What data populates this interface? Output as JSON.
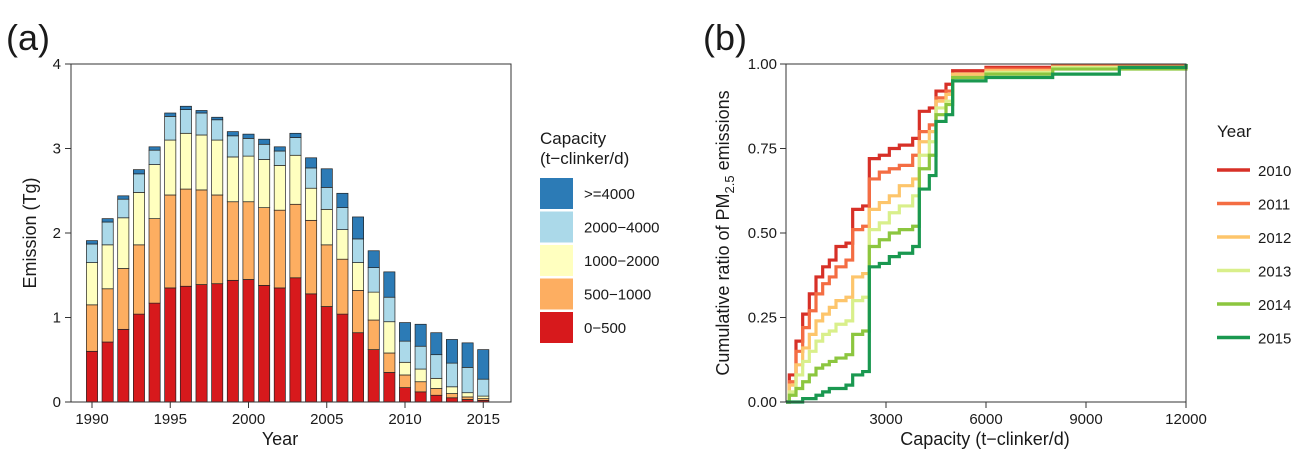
{
  "chart_data": [
    {
      "panel_label": "(a)",
      "type": "bar",
      "stacked": true,
      "xlabel": "Year",
      "ylabel": "Emission (Tg)",
      "ylim": [
        0,
        4
      ],
      "yticks": [
        0,
        1,
        2,
        3,
        4
      ],
      "xtick_labels": [
        "1990",
        "1995",
        "2000",
        "2005",
        "2010",
        "2015"
      ],
      "categories": [
        1990,
        1991,
        1992,
        1993,
        1994,
        1995,
        1996,
        1997,
        1998,
        1999,
        2000,
        2001,
        2002,
        2003,
        2004,
        2005,
        2006,
        2007,
        2008,
        2009,
        2010,
        2011,
        2012,
        2013,
        2014,
        2015
      ],
      "legend_title": [
        "Capacity",
        "(t−clinker/d)"
      ],
      "legend_position": "right",
      "series": [
        {
          "name": "0−500",
          "color": "#d7191c",
          "values": [
            0.6,
            0.71,
            0.86,
            1.04,
            1.17,
            1.35,
            1.37,
            1.39,
            1.4,
            1.44,
            1.45,
            1.38,
            1.35,
            1.47,
            1.28,
            1.13,
            1.04,
            0.82,
            0.62,
            0.35,
            0.17,
            0.12,
            0.08,
            0.05,
            0.03,
            0.02
          ]
        },
        {
          "name": "500−1000",
          "color": "#fdae61",
          "values": [
            0.55,
            0.63,
            0.72,
            0.82,
            1.0,
            1.1,
            1.15,
            1.12,
            1.05,
            0.93,
            0.92,
            0.92,
            0.92,
            0.87,
            0.87,
            0.73,
            0.65,
            0.5,
            0.35,
            0.23,
            0.15,
            0.12,
            0.08,
            0.05,
            0.03,
            0.02
          ]
        },
        {
          "name": "1000−2000",
          "color": "#ffffbf",
          "values": [
            0.5,
            0.52,
            0.6,
            0.62,
            0.64,
            0.65,
            0.66,
            0.65,
            0.65,
            0.53,
            0.54,
            0.57,
            0.53,
            0.58,
            0.38,
            0.42,
            0.35,
            0.33,
            0.33,
            0.37,
            0.15,
            0.15,
            0.12,
            0.08,
            0.05,
            0.03
          ]
        },
        {
          "name": "2000−4000",
          "color": "#abd9e9",
          "values": [
            0.22,
            0.27,
            0.22,
            0.22,
            0.17,
            0.28,
            0.28,
            0.26,
            0.24,
            0.25,
            0.21,
            0.18,
            0.17,
            0.21,
            0.24,
            0.26,
            0.26,
            0.28,
            0.29,
            0.29,
            0.25,
            0.27,
            0.28,
            0.28,
            0.3,
            0.2
          ]
        },
        {
          "name": ">=4000",
          "color": "#2c7bb6",
          "values": [
            0.04,
            0.04,
            0.04,
            0.05,
            0.04,
            0.04,
            0.04,
            0.03,
            0.03,
            0.05,
            0.05,
            0.06,
            0.05,
            0.05,
            0.12,
            0.22,
            0.17,
            0.26,
            0.2,
            0.3,
            0.22,
            0.26,
            0.26,
            0.28,
            0.29,
            0.35
          ]
        }
      ]
    },
    {
      "panel_label": "(b)",
      "type": "line",
      "step": true,
      "xlabel": "Capacity (t−clinker/d)",
      "ylabel_prefix": "Cumulative ratio of PM",
      "ylabel_sub": "2.5",
      "ylabel_suffix": " emissions",
      "xlim": [
        0,
        12000
      ],
      "ylim": [
        0,
        1
      ],
      "xtick_values": [
        3000,
        6000,
        9000,
        12000
      ],
      "xtick_labels": [
        "3000",
        "6000",
        "9000",
        "12000"
      ],
      "ytick_values": [
        0,
        0.25,
        0.5,
        0.75,
        1
      ],
      "ytick_labels": [
        "0.00",
        "0.25",
        "0.50",
        "0.75",
        "1.00"
      ],
      "legend_title": "Year",
      "legend_position": "right",
      "series": [
        {
          "name": "2010",
          "color": "#d73027",
          "points": [
            [
              0,
              0
            ],
            [
              100,
              0.08
            ],
            [
              300,
              0.18
            ],
            [
              500,
              0.26
            ],
            [
              700,
              0.32
            ],
            [
              900,
              0.37
            ],
            [
              1100,
              0.4
            ],
            [
              1300,
              0.42
            ],
            [
              1500,
              0.46
            ],
            [
              1800,
              0.47
            ],
            [
              2000,
              0.57
            ],
            [
              2300,
              0.58
            ],
            [
              2500,
              0.72
            ],
            [
              2800,
              0.73
            ],
            [
              3100,
              0.75
            ],
            [
              3400,
              0.76
            ],
            [
              3800,
              0.78
            ],
            [
              4000,
              0.86
            ],
            [
              4300,
              0.87
            ],
            [
              4500,
              0.92
            ],
            [
              4800,
              0.94
            ],
            [
              5000,
              0.98
            ],
            [
              6000,
              0.99
            ],
            [
              8000,
              0.995
            ],
            [
              12000,
              1.0
            ]
          ]
        },
        {
          "name": "2011",
          "color": "#f46d43",
          "points": [
            [
              0,
              0
            ],
            [
              100,
              0.06
            ],
            [
              300,
              0.15
            ],
            [
              500,
              0.22
            ],
            [
              700,
              0.27
            ],
            [
              900,
              0.32
            ],
            [
              1100,
              0.35
            ],
            [
              1300,
              0.37
            ],
            [
              1500,
              0.4
            ],
            [
              1800,
              0.42
            ],
            [
              2000,
              0.51
            ],
            [
              2300,
              0.52
            ],
            [
              2500,
              0.66
            ],
            [
              2800,
              0.68
            ],
            [
              3100,
              0.69
            ],
            [
              3400,
              0.7
            ],
            [
              3800,
              0.73
            ],
            [
              4000,
              0.8
            ],
            [
              4300,
              0.82
            ],
            [
              4500,
              0.9
            ],
            [
              4800,
              0.92
            ],
            [
              5000,
              0.97
            ],
            [
              6000,
              0.985
            ],
            [
              8000,
              0.995
            ],
            [
              12000,
              1.0
            ]
          ]
        },
        {
          "name": "2012",
          "color": "#fdc56b",
          "points": [
            [
              0,
              0
            ],
            [
              100,
              0.05
            ],
            [
              300,
              0.11
            ],
            [
              500,
              0.16
            ],
            [
              700,
              0.2
            ],
            [
              900,
              0.24
            ],
            [
              1100,
              0.26
            ],
            [
              1300,
              0.28
            ],
            [
              1500,
              0.3
            ],
            [
              1800,
              0.31
            ],
            [
              2000,
              0.37
            ],
            [
              2300,
              0.38
            ],
            [
              2500,
              0.57
            ],
            [
              2800,
              0.59
            ],
            [
              3100,
              0.61
            ],
            [
              3400,
              0.64
            ],
            [
              3800,
              0.66
            ],
            [
              4000,
              0.77
            ],
            [
              4300,
              0.8
            ],
            [
              4500,
              0.89
            ],
            [
              4800,
              0.91
            ],
            [
              5000,
              0.97
            ],
            [
              6000,
              0.98
            ],
            [
              8000,
              0.99
            ],
            [
              12000,
              1.0
            ]
          ]
        },
        {
          "name": "2013",
          "color": "#d9ef8b",
          "points": [
            [
              0,
              0
            ],
            [
              100,
              0.03
            ],
            [
              300,
              0.08
            ],
            [
              500,
              0.12
            ],
            [
              700,
              0.15
            ],
            [
              900,
              0.18
            ],
            [
              1100,
              0.2
            ],
            [
              1300,
              0.21
            ],
            [
              1500,
              0.23
            ],
            [
              1800,
              0.24
            ],
            [
              2000,
              0.3
            ],
            [
              2300,
              0.31
            ],
            [
              2500,
              0.51
            ],
            [
              2800,
              0.53
            ],
            [
              3100,
              0.56
            ],
            [
              3400,
              0.58
            ],
            [
              3800,
              0.61
            ],
            [
              4000,
              0.73
            ],
            [
              4300,
              0.77
            ],
            [
              4500,
              0.87
            ],
            [
              4800,
              0.89
            ],
            [
              5000,
              0.96
            ],
            [
              6000,
              0.975
            ],
            [
              8000,
              0.99
            ],
            [
              12000,
              1.0
            ]
          ]
        },
        {
          "name": "2014",
          "color": "#8cc63f",
          "points": [
            [
              0,
              0
            ],
            [
              100,
              0.02
            ],
            [
              300,
              0.04
            ],
            [
              500,
              0.06
            ],
            [
              700,
              0.08
            ],
            [
              900,
              0.1
            ],
            [
              1100,
              0.11
            ],
            [
              1300,
              0.12
            ],
            [
              1500,
              0.13
            ],
            [
              1800,
              0.14
            ],
            [
              2000,
              0.2
            ],
            [
              2300,
              0.21
            ],
            [
              2500,
              0.46
            ],
            [
              2800,
              0.48
            ],
            [
              3100,
              0.5
            ],
            [
              3400,
              0.51
            ],
            [
              3800,
              0.52
            ],
            [
              4000,
              0.69
            ],
            [
              4300,
              0.73
            ],
            [
              4500,
              0.85
            ],
            [
              4800,
              0.88
            ],
            [
              5000,
              0.96
            ],
            [
              6000,
              0.97
            ],
            [
              8000,
              0.985
            ],
            [
              12000,
              1.0
            ]
          ]
        },
        {
          "name": "2015",
          "color": "#1a9850",
          "points": [
            [
              0,
              0
            ],
            [
              500,
              0.01
            ],
            [
              900,
              0.02
            ],
            [
              1100,
              0.03
            ],
            [
              1300,
              0.04
            ],
            [
              1500,
              0.04
            ],
            [
              1800,
              0.05
            ],
            [
              2000,
              0.08
            ],
            [
              2300,
              0.09
            ],
            [
              2500,
              0.4
            ],
            [
              2800,
              0.41
            ],
            [
              3100,
              0.43
            ],
            [
              3400,
              0.44
            ],
            [
              3800,
              0.46
            ],
            [
              4000,
              0.63
            ],
            [
              4300,
              0.67
            ],
            [
              4500,
              0.83
            ],
            [
              4800,
              0.85
            ],
            [
              5000,
              0.95
            ],
            [
              6000,
              0.96
            ],
            [
              8000,
              0.97
            ],
            [
              10000,
              0.99
            ],
            [
              12000,
              1.0
            ]
          ]
        }
      ]
    }
  ]
}
